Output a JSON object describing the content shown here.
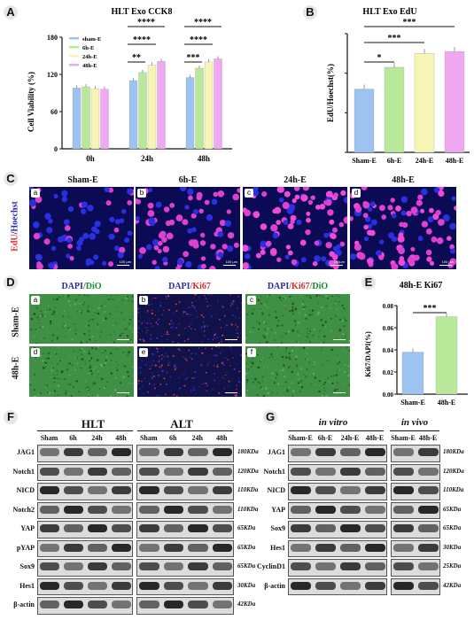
{
  "panels": {
    "A": "A",
    "B": "B",
    "C": "C",
    "D": "D",
    "E": "E",
    "F": "F",
    "G": "G"
  },
  "chart_data": [
    {
      "type": "bar",
      "title": "HLT Exo CCK8",
      "ylabel": "Cell Viability (%)",
      "xlabel": "",
      "categories": [
        "0h",
        "24h",
        "48h"
      ],
      "ylim": [
        0,
        180
      ],
      "yticks": [
        0,
        60,
        120,
        180
      ],
      "series": [
        {
          "name": "sham-E",
          "color": "#9dc3f0",
          "values": [
            98,
            110,
            115
          ]
        },
        {
          "name": "6h-E",
          "color": "#b8e89a",
          "values": [
            100,
            123,
            130
          ]
        },
        {
          "name": "24h-E",
          "color": "#f7f5b5",
          "values": [
            97,
            135,
            140
          ]
        },
        {
          "name": "48h-E",
          "color": "#f0a8f0",
          "values": [
            96,
            141,
            145
          ]
        }
      ],
      "legend_position": "top-left",
      "significance": [
        "****",
        "****",
        "**",
        "****",
        "****",
        "***"
      ]
    },
    {
      "type": "bar",
      "title": "HLT Exo EdU",
      "ylabel": "EdU/Hoechst(%)",
      "xlabel": "",
      "categories": [
        "Sham-E",
        "6h-E",
        "24h-E",
        "48h-E"
      ],
      "ylim": [
        0,
        0.6
      ],
      "colors": [
        "#9dc3f0",
        "#b8e89a",
        "#f7f5b5",
        "#f0a8f0"
      ],
      "values": [
        0.32,
        0.43,
        0.5,
        0.51
      ],
      "significance": [
        "*",
        "***",
        "***"
      ]
    },
    {
      "type": "bar",
      "title": "48h-E Ki67",
      "ylabel": "Ki67/DAPI(%)",
      "xlabel": "",
      "categories": [
        "Sham-E",
        "48h-E"
      ],
      "ylim": [
        0,
        0.08
      ],
      "yticks": [
        "0.00",
        "0.02",
        "0.04",
        "0.06",
        "0.08"
      ],
      "colors": [
        "#9dc3f0",
        "#b8e89a"
      ],
      "values": [
        0.038,
        0.07
      ],
      "significance": [
        "***"
      ]
    }
  ],
  "panelC": {
    "columns": [
      "Sham-E",
      "6h-E",
      "24h-E",
      "48h-E"
    ],
    "subtags": [
      "a",
      "b",
      "c",
      "d"
    ],
    "rowlabel_red": "EdU",
    "rowlabel_sep": "/",
    "rowlabel_blue": "Hoechst",
    "scalebars": [
      "100 μm",
      "100 μm",
      "100μm",
      "100 μm"
    ]
  },
  "panelD": {
    "headers": [
      {
        "a": "DAPI",
        "b": "/DiO"
      },
      {
        "a": "DAPI",
        "b": "/Ki67"
      },
      {
        "a": "DAPI",
        "b": "/Ki67",
        "c": "/DiO"
      }
    ],
    "rows": [
      "Sham-E",
      "48h-E"
    ],
    "subtags": [
      "a",
      "b",
      "c",
      "d",
      "e",
      "f"
    ]
  },
  "panelF": {
    "groups": [
      "HLT",
      "ALT"
    ],
    "lanes": [
      "Sham",
      "6h",
      "24h",
      "48h",
      "Sham",
      "6h",
      "24h",
      "48h"
    ],
    "rows": [
      {
        "name": "JAG1",
        "kda": "180KDa"
      },
      {
        "name": "Notch1",
        "kda": "120KDa"
      },
      {
        "name": "NICD",
        "kda": "110KDa"
      },
      {
        "name": "Notch2",
        "kda": "110KDa"
      },
      {
        "name": "YAP",
        "kda": "65KDa"
      },
      {
        "name": "pYAP",
        "kda": "65KDa"
      },
      {
        "name": "Sox9",
        "kda": "65KDa"
      },
      {
        "name": "Hes1",
        "kda": "30KDa"
      },
      {
        "name": "β-actin",
        "kda": "42KDa"
      }
    ]
  },
  "panelG": {
    "groups": [
      "in vitro",
      "in vivo"
    ],
    "lanes": [
      "Sham-E",
      "6h-E",
      "24h-E",
      "48h-E",
      "Sham-E",
      "48h-E"
    ],
    "rows": [
      {
        "name": "JAG1",
        "kda": "180KDa"
      },
      {
        "name": "Notch1",
        "kda": "120KDa"
      },
      {
        "name": "NICD",
        "kda": "110KDa"
      },
      {
        "name": "YAP",
        "kda": "65KDa"
      },
      {
        "name": "Sox9",
        "kda": "65KDa"
      },
      {
        "name": "Hes1",
        "kda": "30KDa"
      },
      {
        "name": "CyclinD1",
        "kda": "25KDa"
      },
      {
        "name": "β-actin",
        "kda": "42KDa"
      }
    ]
  }
}
